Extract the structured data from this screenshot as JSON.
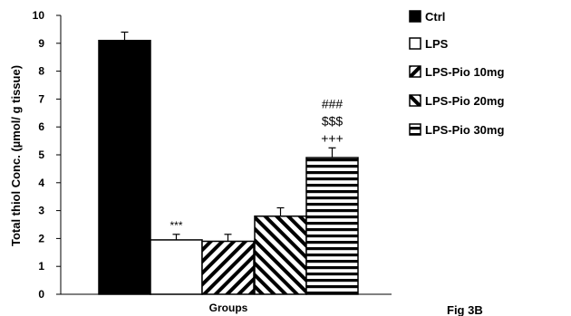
{
  "chart_data": {
    "type": "bar",
    "ylabel": "Total thiol Conc. (µmol/ g tissue)",
    "xlabel": "Groups",
    "ylim": [
      0,
      10
    ],
    "yticks": [
      0,
      1,
      2,
      3,
      4,
      5,
      6,
      7,
      8,
      9,
      10
    ],
    "grid": false,
    "legend_position": "right",
    "series": [
      {
        "name": "Ctrl",
        "value": 9.1,
        "error": 0.3,
        "pattern": "solid-black",
        "annotation": []
      },
      {
        "name": "LPS",
        "value": 1.95,
        "error": 0.2,
        "pattern": "white",
        "annotation": [
          "***"
        ]
      },
      {
        "name": "LPS-Pio 10mg",
        "value": 1.9,
        "error": 0.25,
        "pattern": "diagonal-down",
        "annotation": []
      },
      {
        "name": "LPS-Pio 20mg",
        "value": 2.8,
        "error": 0.3,
        "pattern": "diagonal-up",
        "annotation": []
      },
      {
        "name": "LPS-Pio 30mg",
        "value": 4.9,
        "error": 0.35,
        "pattern": "horizontal",
        "annotation": [
          "###",
          "$$$",
          "+++"
        ]
      }
    ]
  },
  "figure_label": "Fig 3B"
}
